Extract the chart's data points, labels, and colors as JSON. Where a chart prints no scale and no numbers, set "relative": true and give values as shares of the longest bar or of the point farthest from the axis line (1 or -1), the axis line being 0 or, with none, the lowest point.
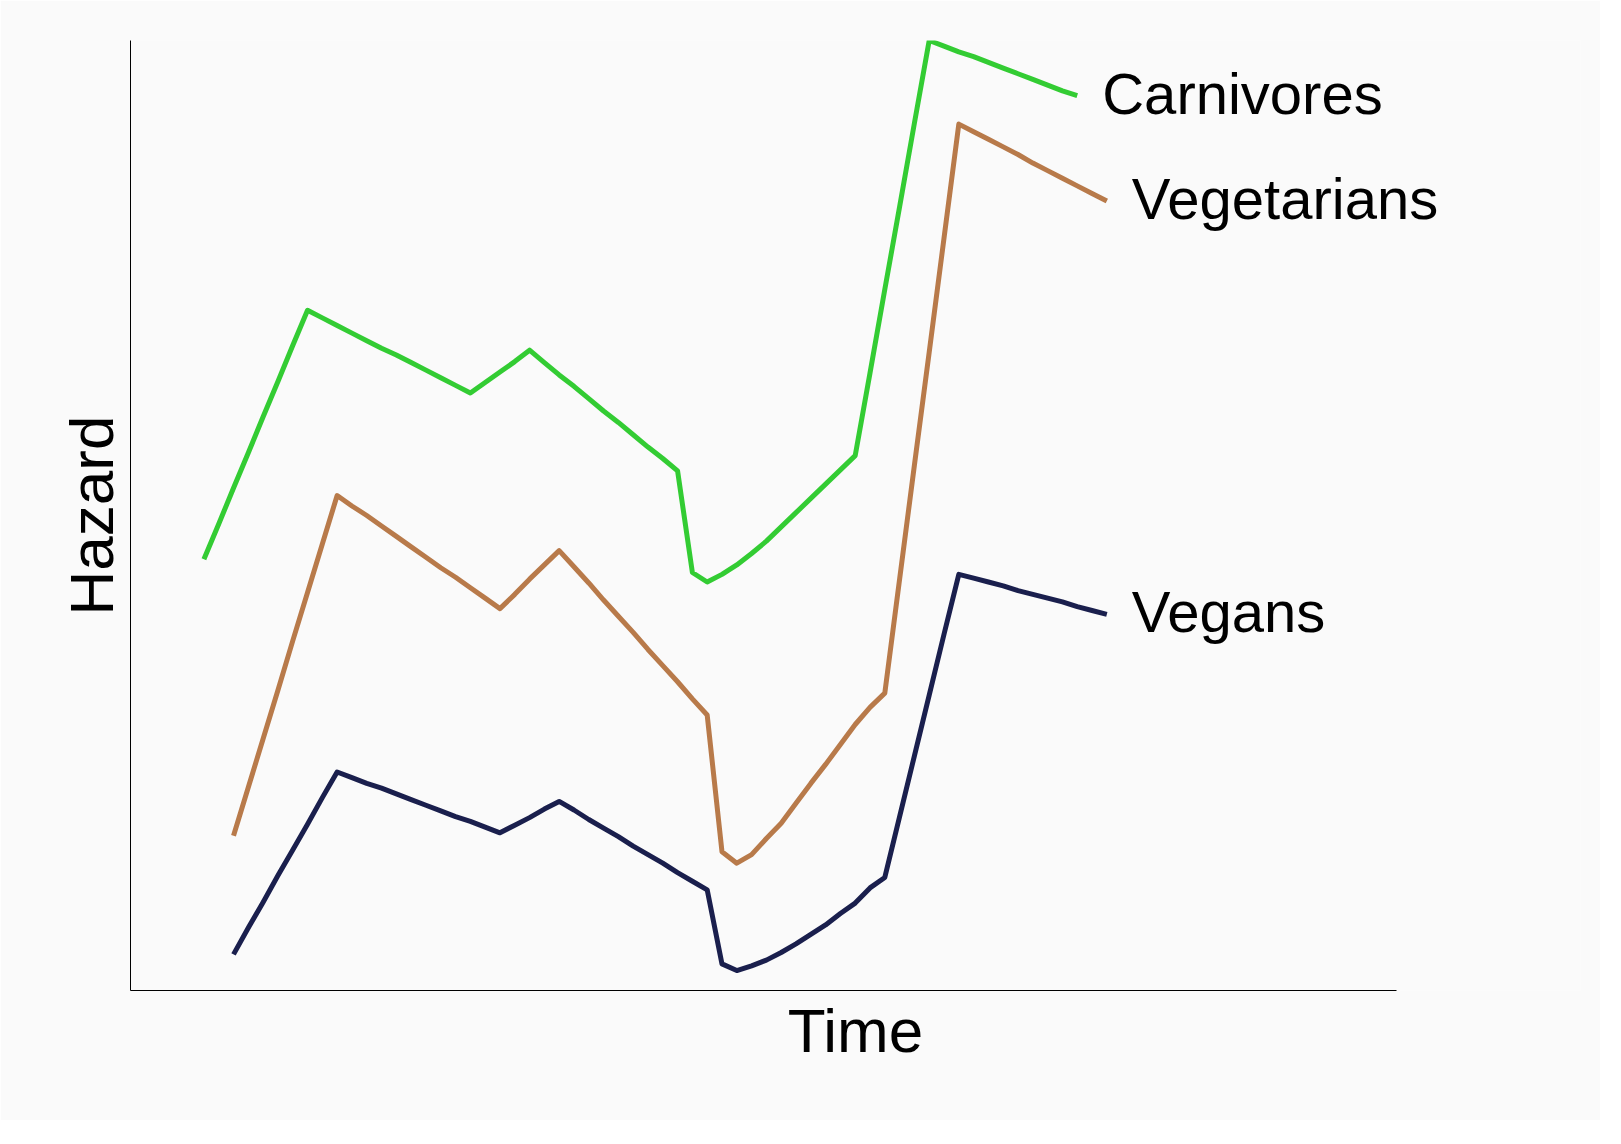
{
  "chart_data": {
    "type": "line",
    "xlabel": "Time",
    "ylabel": "Hazard",
    "relative": true,
    "tick_labels": false,
    "categories": [
      null,
      null,
      null,
      null,
      null,
      null,
      null,
      null,
      null,
      null,
      null,
      null,
      null,
      null,
      null,
      null,
      null,
      null,
      null,
      null,
      null,
      null,
      null,
      null,
      null,
      null,
      null,
      null,
      null,
      null,
      null,
      null,
      null,
      null,
      null,
      null,
      null,
      null,
      null,
      null,
      null,
      null,
      null,
      null,
      null,
      null,
      null,
      null,
      null,
      null,
      null,
      null,
      null,
      null,
      null,
      null,
      null,
      null,
      null,
      null,
      null,
      null
    ],
    "series": [
      {
        "name": "Carnivores",
        "color": "#33cc33",
        "values": [
          0.454,
          0.491,
          0.529,
          0.566,
          0.604,
          0.641,
          0.679,
          0.716,
          0.708,
          0.7,
          0.692,
          0.684,
          0.676,
          0.669,
          0.661,
          0.653,
          0.645,
          0.637,
          0.629,
          0.64,
          0.651,
          0.662,
          0.674,
          0.661,
          0.648,
          0.636,
          0.623,
          0.61,
          0.598,
          0.585,
          0.572,
          0.56,
          0.547,
          0.44,
          0.43,
          0.438,
          0.448,
          0.46,
          0.473,
          0.488,
          0.503,
          0.518,
          0.533,
          0.548,
          0.563,
          0.65,
          0.738,
          0.825,
          0.913,
          1.0,
          0.994,
          0.988,
          0.983,
          0.977,
          0.971,
          0.965,
          0.959,
          0.953,
          0.947,
          0.942,
          null,
          null
        ]
      },
      {
        "name": "Vegetarians",
        "color": "#b87a4a",
        "values": [
          null,
          null,
          0.163,
          0.214,
          0.265,
          0.316,
          0.368,
          0.419,
          0.47,
          0.521,
          0.51,
          0.5,
          0.489,
          0.478,
          0.467,
          0.456,
          0.445,
          0.435,
          0.424,
          0.413,
          0.402,
          0.417,
          0.433,
          0.448,
          0.463,
          0.446,
          0.429,
          0.411,
          0.394,
          0.377,
          0.359,
          0.342,
          0.325,
          0.307,
          0.29,
          0.146,
          0.134,
          0.143,
          0.16,
          0.176,
          0.197,
          0.218,
          0.238,
          0.259,
          0.28,
          0.298,
          0.313,
          0.433,
          0.553,
          0.672,
          0.792,
          0.912,
          0.904,
          0.896,
          0.888,
          0.88,
          0.871,
          0.863,
          0.855,
          0.847,
          0.839,
          0.831
        ]
      },
      {
        "name": "Vegans",
        "color": "#1a1f4d",
        "values": [
          null,
          null,
          0.038,
          0.066,
          0.093,
          0.121,
          0.148,
          0.175,
          0.203,
          0.23,
          0.224,
          0.218,
          0.213,
          0.207,
          0.201,
          0.195,
          0.189,
          0.183,
          0.178,
          0.172,
          0.166,
          0.174,
          0.182,
          0.191,
          0.199,
          0.19,
          0.18,
          0.171,
          0.162,
          0.152,
          0.143,
          0.134,
          0.124,
          0.115,
          0.106,
          0.028,
          0.021,
          0.026,
          0.032,
          0.04,
          0.049,
          0.059,
          0.069,
          0.081,
          0.092,
          0.108,
          0.119,
          0.183,
          0.247,
          0.311,
          0.375,
          0.438,
          0.434,
          0.43,
          0.426,
          0.421,
          0.417,
          0.413,
          0.409,
          0.404,
          0.4,
          0.396
        ]
      }
    ]
  }
}
